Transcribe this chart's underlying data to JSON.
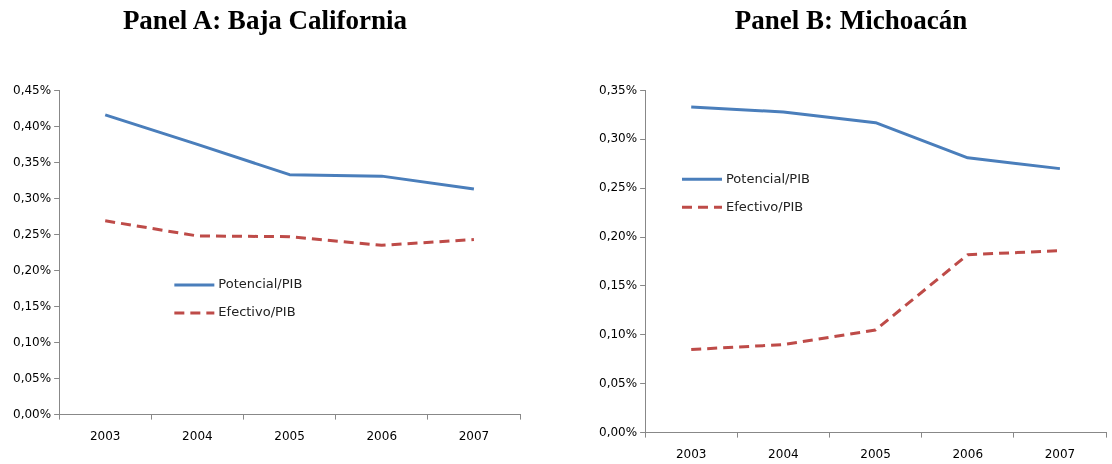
{
  "chart_data": [
    {
      "type": "line",
      "title": "Panel A: Baja California",
      "categories": [
        "2003",
        "2004",
        "2005",
        "2006",
        "2007"
      ],
      "series": [
        {
          "name": "Potencial/PIB",
          "color": "#4a7ebb",
          "values": [
            0.416,
            0.375,
            0.333,
            0.331,
            0.313
          ],
          "line_style": "solid"
        },
        {
          "name": "Efectivo/PIB",
          "color": "#be4b48",
          "values": [
            0.269,
            0.248,
            0.247,
            0.235,
            0.243
          ],
          "line_style": "dashed"
        }
      ],
      "ylim": [
        0,
        0.45
      ],
      "yticks": [
        {
          "value": 0,
          "label": "0,00%"
        },
        {
          "value": 0.05,
          "label": "0,05%"
        },
        {
          "value": 0.1,
          "label": "0,10%"
        },
        {
          "value": 0.15,
          "label": "0,15%"
        },
        {
          "value": 0.2,
          "label": "0,20%"
        },
        {
          "value": 0.25,
          "label": "0,25%"
        },
        {
          "value": 0.3,
          "label": "0,30%"
        },
        {
          "value": 0.35,
          "label": "0,35%"
        },
        {
          "value": 0.4,
          "label": "0,40%"
        },
        {
          "value": 0.45,
          "label": "0,45%"
        }
      ],
      "grid": false,
      "legend": "center",
      "marker": "none"
    },
    {
      "type": "line",
      "title": "Panel B: Michoacán",
      "categories": [
        "2003",
        "2004",
        "2005",
        "2006",
        "2007"
      ],
      "series": [
        {
          "name": "Potencial/PIB",
          "color": "#4a7ebb",
          "values": [
            0.333,
            0.328,
            0.317,
            0.281,
            0.27
          ],
          "line_style": "solid"
        },
        {
          "name": "Efectivo/PIB",
          "color": "#be4b48",
          "values": [
            0.085,
            0.09,
            0.105,
            0.182,
            0.186
          ],
          "line_style": "dashed"
        }
      ],
      "ylim": [
        0,
        0.35
      ],
      "yticks": [
        {
          "value": 0,
          "label": "0,00%"
        },
        {
          "value": 0.05,
          "label": "0,05%"
        },
        {
          "value": 0.1,
          "label": "0,10%"
        },
        {
          "value": 0.15,
          "label": "0,15%"
        },
        {
          "value": 0.2,
          "label": "0,20%"
        },
        {
          "value": 0.25,
          "label": "0,25%"
        },
        {
          "value": 0.3,
          "label": "0,30%"
        },
        {
          "value": 0.35,
          "label": "0,35%"
        }
      ],
      "grid": false,
      "legend": "top left",
      "marker": "none"
    }
  ]
}
